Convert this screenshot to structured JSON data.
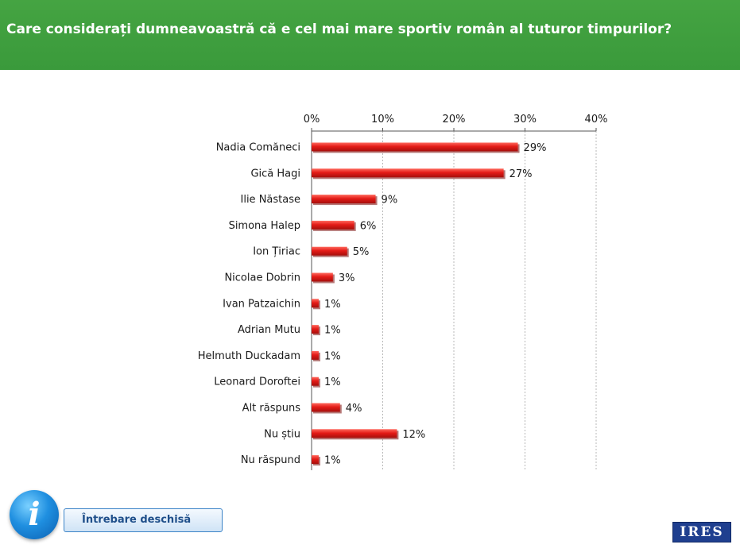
{
  "header": {
    "title": "Care considerați dumneavoastră că e cel mai mare sportiv român al tuturor timpurilor?"
  },
  "chart_data": {
    "type": "bar",
    "orientation": "horizontal",
    "categories": [
      "Nadia Comăneci",
      "Gică Hagi",
      "Ilie Năstase",
      "Simona Halep",
      "Ion Țiriac",
      "Nicolae Dobrin",
      "Ivan Patzaichin",
      "Adrian Mutu",
      "Helmuth Duckadam",
      "Leonard Doroftei",
      "Alt răspuns",
      "Nu știu",
      "Nu răspund"
    ],
    "values": [
      29,
      27,
      9,
      6,
      5,
      3,
      1,
      1,
      1,
      1,
      4,
      12,
      1
    ],
    "value_labels": [
      "29%",
      "27%",
      "9%",
      "6%",
      "5%",
      "3%",
      "1%",
      "1%",
      "1%",
      "1%",
      "4%",
      "12%",
      "1%"
    ],
    "xlim": [
      0,
      40
    ],
    "ticks": [
      0,
      10,
      20,
      30,
      40
    ],
    "tick_labels": [
      "0%",
      "10%",
      "20%",
      "30%",
      "40%"
    ],
    "axis_position": "top",
    "grid": true,
    "bar_color": "#e41b17"
  },
  "footer": {
    "info_icon": "info-icon",
    "info_glyph": "i",
    "note": "Întrebare deschisă",
    "logo": "IRES"
  }
}
